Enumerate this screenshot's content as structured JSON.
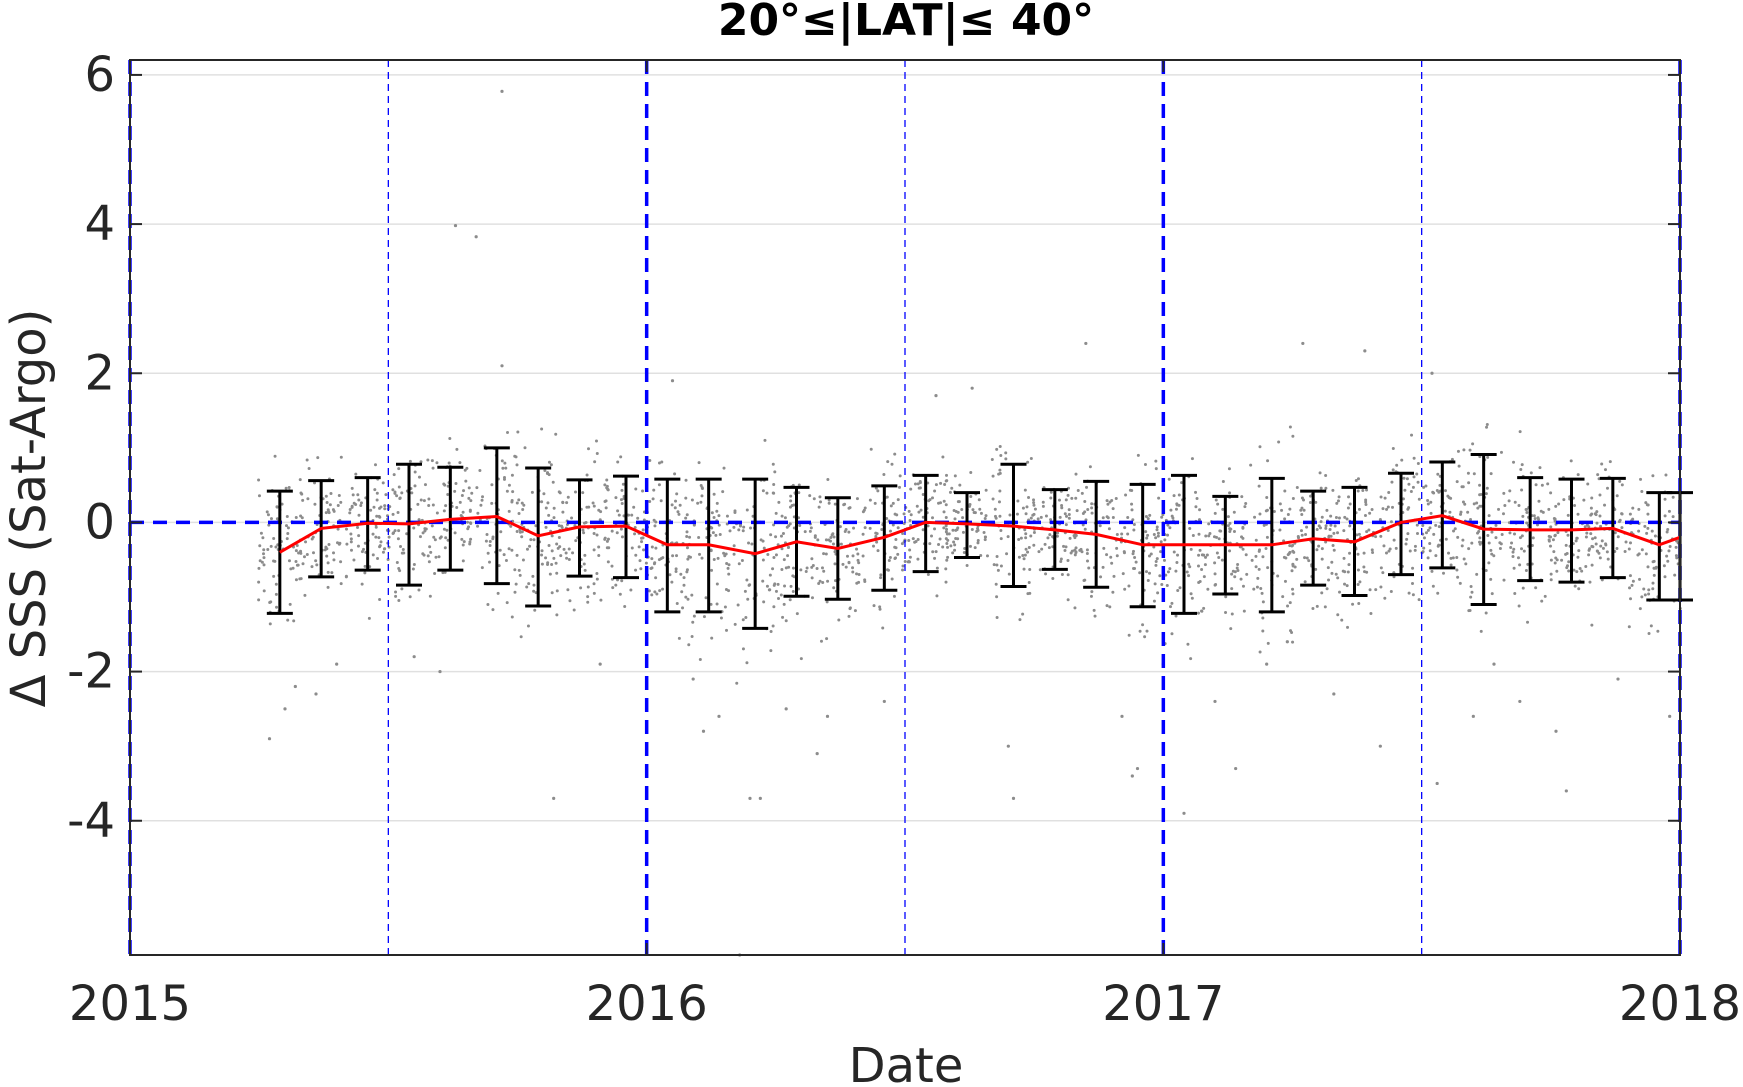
{
  "chart_data": {
    "type": "scatter",
    "title": "20°≤|LAT|≤ 40°",
    "xlabel": "Date",
    "ylabel": "Δ SSS (Sat-Argo)",
    "xlim": [
      2015.0,
      2018.0
    ],
    "ylim": [
      -5.8,
      6.2
    ],
    "x_ticks": [
      2015,
      2016,
      2017,
      2018
    ],
    "x_tick_labels": [
      "2015",
      "2016",
      "2017",
      "2018"
    ],
    "y_ticks": [
      -4,
      -2,
      0,
      2,
      4,
      6
    ],
    "y_tick_labels": [
      "-4",
      "-2",
      "0",
      "2",
      "4",
      "6"
    ],
    "grid": true,
    "colors": {
      "points": "#8c8c8c",
      "mean_line": "#ff0000",
      "error_bars": "#000000",
      "reference_lines": "#0000ff",
      "grid": "#e0e0e0",
      "axes": "#262626"
    },
    "reference": {
      "zero_line_y": 0,
      "year_lines_x": [
        2015,
        2016,
        2017,
        2018
      ],
      "half_year_lines_x": [
        2015.5,
        2016.5,
        2017.5
      ]
    },
    "series": [
      {
        "type": "line_with_errorbars",
        "x": [
          2015.29,
          2015.37,
          2015.46,
          2015.54,
          2015.62,
          2015.71,
          2015.79,
          2015.87,
          2015.96,
          2016.04,
          2016.12,
          2016.21,
          2016.29,
          2016.37,
          2016.46,
          2016.54,
          2016.62,
          2016.71,
          2016.79,
          2016.87,
          2016.96,
          2017.04,
          2017.12,
          2017.21,
          2017.29,
          2017.37,
          2017.46,
          2017.54,
          2017.62,
          2017.71,
          2017.79,
          2017.87,
          2017.96,
          2018.0
        ],
        "mean": [
          -0.4,
          -0.08,
          -0.01,
          -0.02,
          0.04,
          0.08,
          -0.18,
          -0.06,
          -0.05,
          -0.3,
          -0.3,
          -0.42,
          -0.26,
          -0.35,
          -0.2,
          0.0,
          -0.02,
          -0.05,
          -0.1,
          -0.16,
          -0.3,
          -0.3,
          -0.3,
          -0.3,
          -0.22,
          -0.26,
          0.0,
          0.09,
          -0.09,
          -0.1,
          -0.1,
          -0.08,
          -0.3,
          -0.2
        ],
        "upper": [
          0.42,
          0.56,
          0.6,
          0.78,
          0.74,
          1.0,
          0.73,
          0.57,
          0.62,
          0.58,
          0.58,
          0.58,
          0.47,
          0.33,
          0.49,
          0.63,
          0.4,
          0.78,
          0.44,
          0.55,
          0.51,
          0.63,
          0.35,
          0.59,
          0.42,
          0.47,
          0.66,
          0.81,
          0.91,
          0.6,
          0.58,
          0.59,
          0.4,
          0.4
        ],
        "lower": [
          -1.22,
          -0.73,
          -0.64,
          -0.84,
          -0.64,
          -0.82,
          -1.12,
          -0.72,
          -0.74,
          -1.2,
          -1.2,
          -1.42,
          -0.99,
          -1.03,
          -0.91,
          -0.66,
          -0.47,
          -0.86,
          -0.63,
          -0.87,
          -1.13,
          -1.22,
          -0.96,
          -1.2,
          -0.84,
          -0.98,
          -0.7,
          -0.61,
          -1.1,
          -0.78,
          -0.8,
          -0.74,
          -1.04,
          -1.04
        ]
      }
    ],
    "scatter_outliers": {
      "x": [
        2015.27,
        2015.3,
        2015.32,
        2015.36,
        2015.4,
        2015.63,
        2015.67,
        2015.72,
        2015.72,
        2015.82,
        2015.91,
        2016.05,
        2016.09,
        2016.11,
        2016.14,
        2016.18,
        2016.2,
        2016.22,
        2016.27,
        2016.33,
        2016.35,
        2016.46,
        2016.56,
        2016.7,
        2016.71,
        2016.85,
        2016.92,
        2016.94,
        2016.95,
        2017.04,
        2017.1,
        2017.14,
        2017.2,
        2017.24,
        2017.27,
        2017.39,
        2017.42,
        2017.52,
        2017.53,
        2017.6,
        2017.64,
        2017.69,
        2017.76,
        2017.78,
        2017.88,
        2017.98,
        2015.55,
        2015.6,
        2016.63,
        2017.33
      ],
      "y": [
        -2.9,
        -2.5,
        -2.2,
        -2.3,
        -1.9,
        3.98,
        3.83,
        5.78,
        2.1,
        -3.7,
        -1.9,
        1.9,
        -2.1,
        -2.8,
        -2.6,
        -5.8,
        -3.7,
        -3.7,
        -2.5,
        -3.1,
        -2.6,
        -2.4,
        1.7,
        -3.0,
        -3.7,
        2.4,
        -2.6,
        -3.4,
        -3.3,
        -3.9,
        -2.4,
        -3.3,
        -1.9,
        -1.6,
        2.4,
        2.3,
        -3.0,
        2.0,
        -3.5,
        -2.6,
        -1.9,
        -2.4,
        -2.8,
        -3.6,
        -2.1,
        -2.6,
        -1.8,
        -2.0,
        1.8,
        -2.3
      ]
    }
  }
}
